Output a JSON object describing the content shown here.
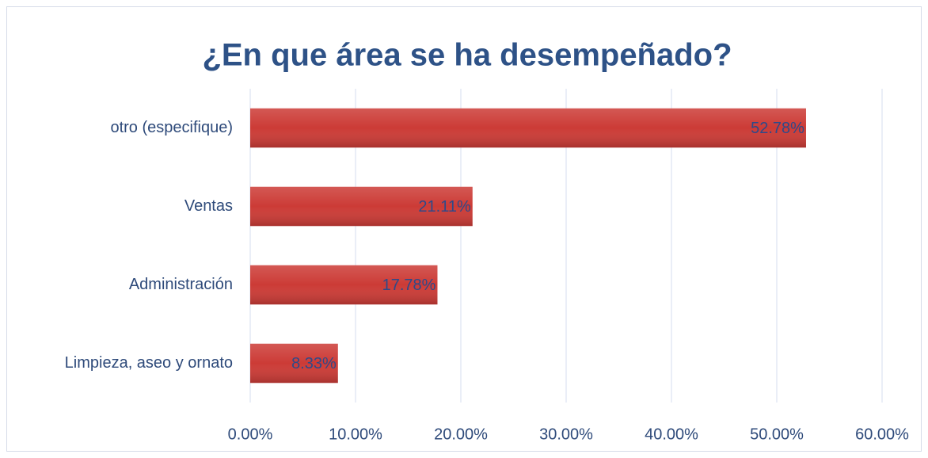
{
  "chart_data": {
    "type": "bar",
    "orientation": "horizontal",
    "title": "¿En que área se ha desempeñado?",
    "categories": [
      "otro (especifique)",
      "Ventas",
      "Administración",
      "Limpieza, aseo y ornato"
    ],
    "values": [
      52.78,
      21.11,
      17.78,
      8.33
    ],
    "value_labels": [
      "52.78%",
      "21.11%",
      "17.78%",
      "8.33%"
    ],
    "color": "#cc3b36",
    "xlim": [
      0,
      60
    ],
    "xticks": [
      {
        "value": 0,
        "label": "0.00%"
      },
      {
        "value": 10,
        "label": "10.00%"
      },
      {
        "value": 20,
        "label": "20.00%"
      },
      {
        "value": 30,
        "label": "30.00%"
      },
      {
        "value": 40,
        "label": "40.00%"
      },
      {
        "value": 50,
        "label": "50.00%"
      },
      {
        "value": 60,
        "label": "60.00%"
      }
    ],
    "grid": true
  }
}
